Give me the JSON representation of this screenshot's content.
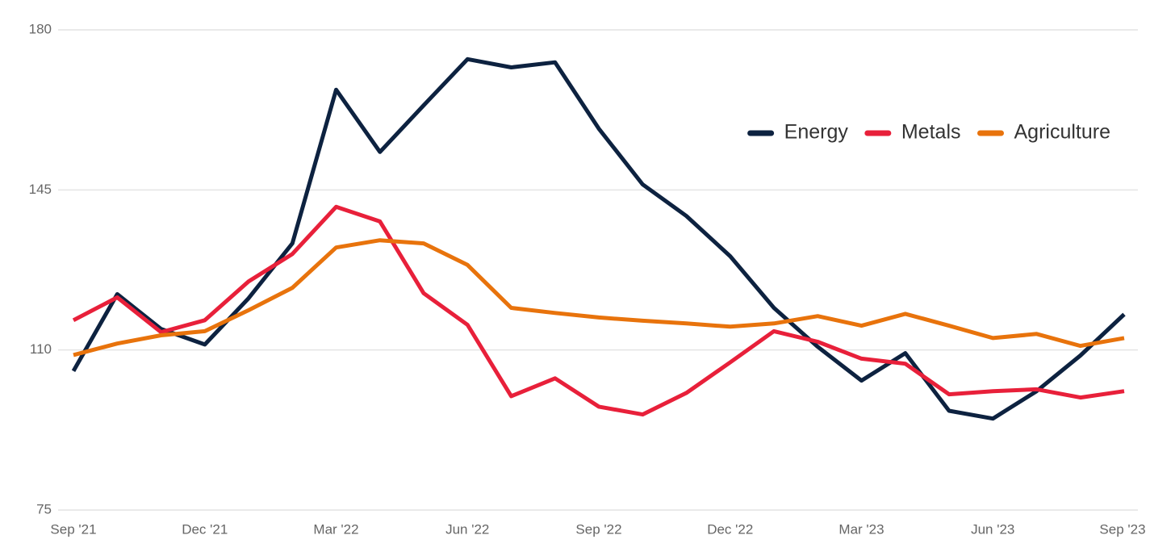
{
  "chart_data": {
    "type": "line",
    "categories": [
      "Sep '21",
      null,
      null,
      "Dec '21",
      null,
      null,
      "Mar '22",
      null,
      null,
      "Jun '22",
      null,
      null,
      "Sep '22",
      null,
      null,
      "Dec '22",
      null,
      null,
      "Mar '23",
      null,
      null,
      "Jun '23",
      null,
      null,
      "Sep '23"
    ],
    "series": [
      {
        "name": "Energy",
        "color": "#0d2240",
        "values": [
          105.4,
          122.2,
          114.6,
          111.2,
          121.3,
          133.3,
          166.9,
          153.3,
          163.5,
          173.6,
          171.8,
          172.9,
          158.4,
          146.2,
          139.3,
          130.5,
          119.2,
          110.7,
          103.3,
          109.3,
          96.7,
          95.0,
          101.0,
          108.8,
          117.8
        ]
      },
      {
        "name": "Metals",
        "color": "#e8203a",
        "values": [
          116.5,
          121.5,
          113.9,
          116.5,
          125.0,
          131.0,
          141.3,
          138.1,
          122.4,
          115.5,
          99.9,
          103.8,
          97.6,
          95.9,
          100.6,
          107.3,
          114.1,
          111.8,
          108.1,
          107.0,
          100.3,
          101.0,
          101.4,
          99.6,
          101.0
        ]
      },
      {
        "name": "Agriculture",
        "color": "#e8730c",
        "values": [
          108.9,
          111.4,
          113.2,
          114.1,
          118.7,
          123.6,
          132.4,
          134.0,
          133.3,
          128.6,
          119.2,
          118.1,
          117.1,
          116.4,
          115.8,
          115.1,
          115.8,
          117.4,
          115.3,
          117.9,
          115.3,
          112.6,
          113.5,
          110.9,
          112.6
        ]
      }
    ],
    "ylim": [
      75,
      180
    ],
    "yticks": [
      75,
      110,
      145,
      180
    ],
    "grid": true,
    "legend": "upper right"
  }
}
